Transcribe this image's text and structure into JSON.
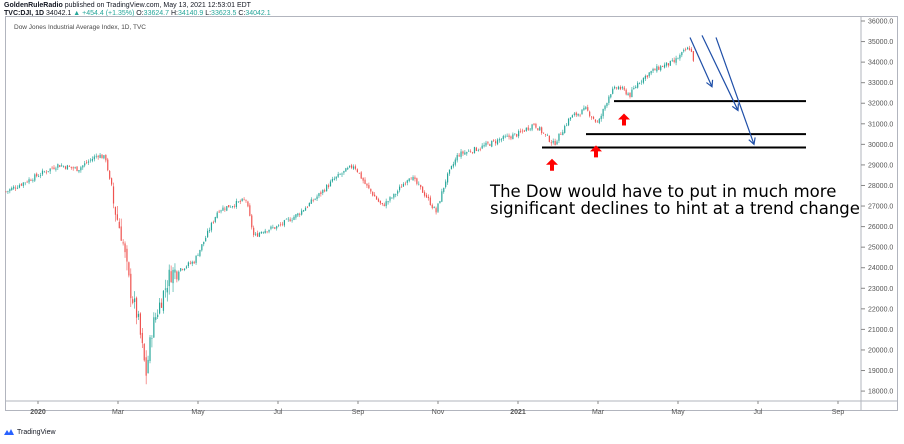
{
  "header": {
    "publisher": "GoldenRuleRadio",
    "published_text": "published on TradingView.com, May 13, 2021 12:53:01 EDT",
    "symbol": "TVC:DJI, 1D",
    "last": "34042.1",
    "change": "+454.4 (+1.35%)",
    "o_label": "O:",
    "o": "33624.7",
    "h_label": "H:",
    "h": "34140.9",
    "l_label": "L:",
    "l": "33623.5",
    "c_label": "C:",
    "c": "34042.1"
  },
  "footer": {
    "brand": "TradingView"
  },
  "colors": {
    "up": "#26a69a",
    "down": "#ef5350",
    "support": "#000000",
    "arrow_blue": "#1f4fa8",
    "arrow_red": "#ff0000"
  },
  "chart_data": {
    "type": "candlestick",
    "title": "Dow Jones Industrial Average Index, 1D, TVC",
    "x_unit": "months since Jan 2020",
    "xlim": [
      -0.8,
      21.5
    ],
    "ylim": [
      17500,
      36200
    ],
    "x_ticks": [
      {
        "m": 0,
        "label": "2020"
      },
      {
        "m": 2,
        "label": "Mar"
      },
      {
        "m": 4,
        "label": "May"
      },
      {
        "m": 6,
        "label": "Jul"
      },
      {
        "m": 8,
        "label": "Sep"
      },
      {
        "m": 10,
        "label": "Nov"
      },
      {
        "m": 12,
        "label": "2021"
      },
      {
        "m": 14,
        "label": "Mar"
      },
      {
        "m": 16,
        "label": "May"
      },
      {
        "m": 18,
        "label": "Jul"
      },
      {
        "m": 20,
        "label": "Sep"
      }
    ],
    "y_ticks": [
      "36000.0",
      "35000.0",
      "34000.0",
      "33000.0",
      "32000.0",
      "31000.0",
      "30000.0",
      "29000.0",
      "28000.0",
      "27000.0",
      "26000.0",
      "25000.0",
      "24000.0",
      "23000.0",
      "22000.0",
      "21000.0",
      "20000.0",
      "19000.0",
      "18000.0"
    ],
    "y_tick_values": [
      36000,
      35000,
      34000,
      33000,
      32000,
      31000,
      30000,
      29000,
      28000,
      27000,
      26000,
      25000,
      24000,
      23000,
      22000,
      21000,
      20000,
      19000,
      18000
    ],
    "close_path": [
      [
        -0.8,
        27700
      ],
      [
        0,
        28500
      ],
      [
        0.5,
        29000
      ],
      [
        1.0,
        28800
      ],
      [
        1.5,
        29500
      ],
      [
        1.7,
        29300
      ],
      [
        1.9,
        27000
      ],
      [
        2.1,
        25500
      ],
      [
        2.3,
        23000
      ],
      [
        2.5,
        21500
      ],
      [
        2.7,
        18800
      ],
      [
        2.85,
        21000
      ],
      [
        3.0,
        22000
      ],
      [
        3.3,
        23700
      ],
      [
        3.6,
        24000
      ],
      [
        3.9,
        24300
      ],
      [
        4.2,
        25500
      ],
      [
        4.5,
        26800
      ],
      [
        5.2,
        27300
      ],
      [
        5.4,
        25500
      ],
      [
        5.6,
        25800
      ],
      [
        6.0,
        26000
      ],
      [
        6.5,
        26600
      ],
      [
        7.0,
        27500
      ],
      [
        7.4,
        28300
      ],
      [
        7.9,
        29000
      ],
      [
        8.2,
        28000
      ],
      [
        8.6,
        27000
      ],
      [
        8.9,
        27500
      ],
      [
        9.3,
        28500
      ],
      [
        9.7,
        27500
      ],
      [
        9.95,
        26700
      ],
      [
        10.2,
        28300
      ],
      [
        10.5,
        29500
      ],
      [
        11.0,
        29800
      ],
      [
        11.5,
        30200
      ],
      [
        12.0,
        30500
      ],
      [
        12.4,
        31000
      ],
      [
        12.9,
        30000
      ],
      [
        13.3,
        31300
      ],
      [
        13.7,
        31700
      ],
      [
        14.0,
        31000
      ],
      [
        14.3,
        32500
      ],
      [
        14.5,
        32800
      ],
      [
        14.8,
        32400
      ],
      [
        15.0,
        33000
      ],
      [
        15.3,
        33500
      ],
      [
        15.6,
        33800
      ],
      [
        15.9,
        34000
      ],
      [
        16.2,
        34600
      ],
      [
        16.3,
        34700
      ],
      [
        16.4,
        34042
      ]
    ],
    "support_levels": [
      {
        "value": 32100,
        "from": 14.4
      },
      {
        "value": 30500,
        "from": 13.7
      },
      {
        "value": 29850,
        "from": 12.6
      }
    ],
    "support_end": 19.2,
    "blue_arrows": [
      [
        [
          16.3,
          35200
        ],
        [
          16.85,
          32800
        ]
      ],
      [
        [
          16.6,
          35300
        ],
        [
          17.5,
          31650
        ]
      ],
      [
        [
          16.95,
          35200
        ],
        [
          17.9,
          30000
        ]
      ]
    ],
    "red_arrows": [
      [
        12.85,
        29300
      ],
      [
        13.95,
        29950
      ],
      [
        14.65,
        31500
      ]
    ],
    "annotation": [
      "The Dow would have to put in much more",
      "significant declines to hint at a trend change"
    ]
  }
}
